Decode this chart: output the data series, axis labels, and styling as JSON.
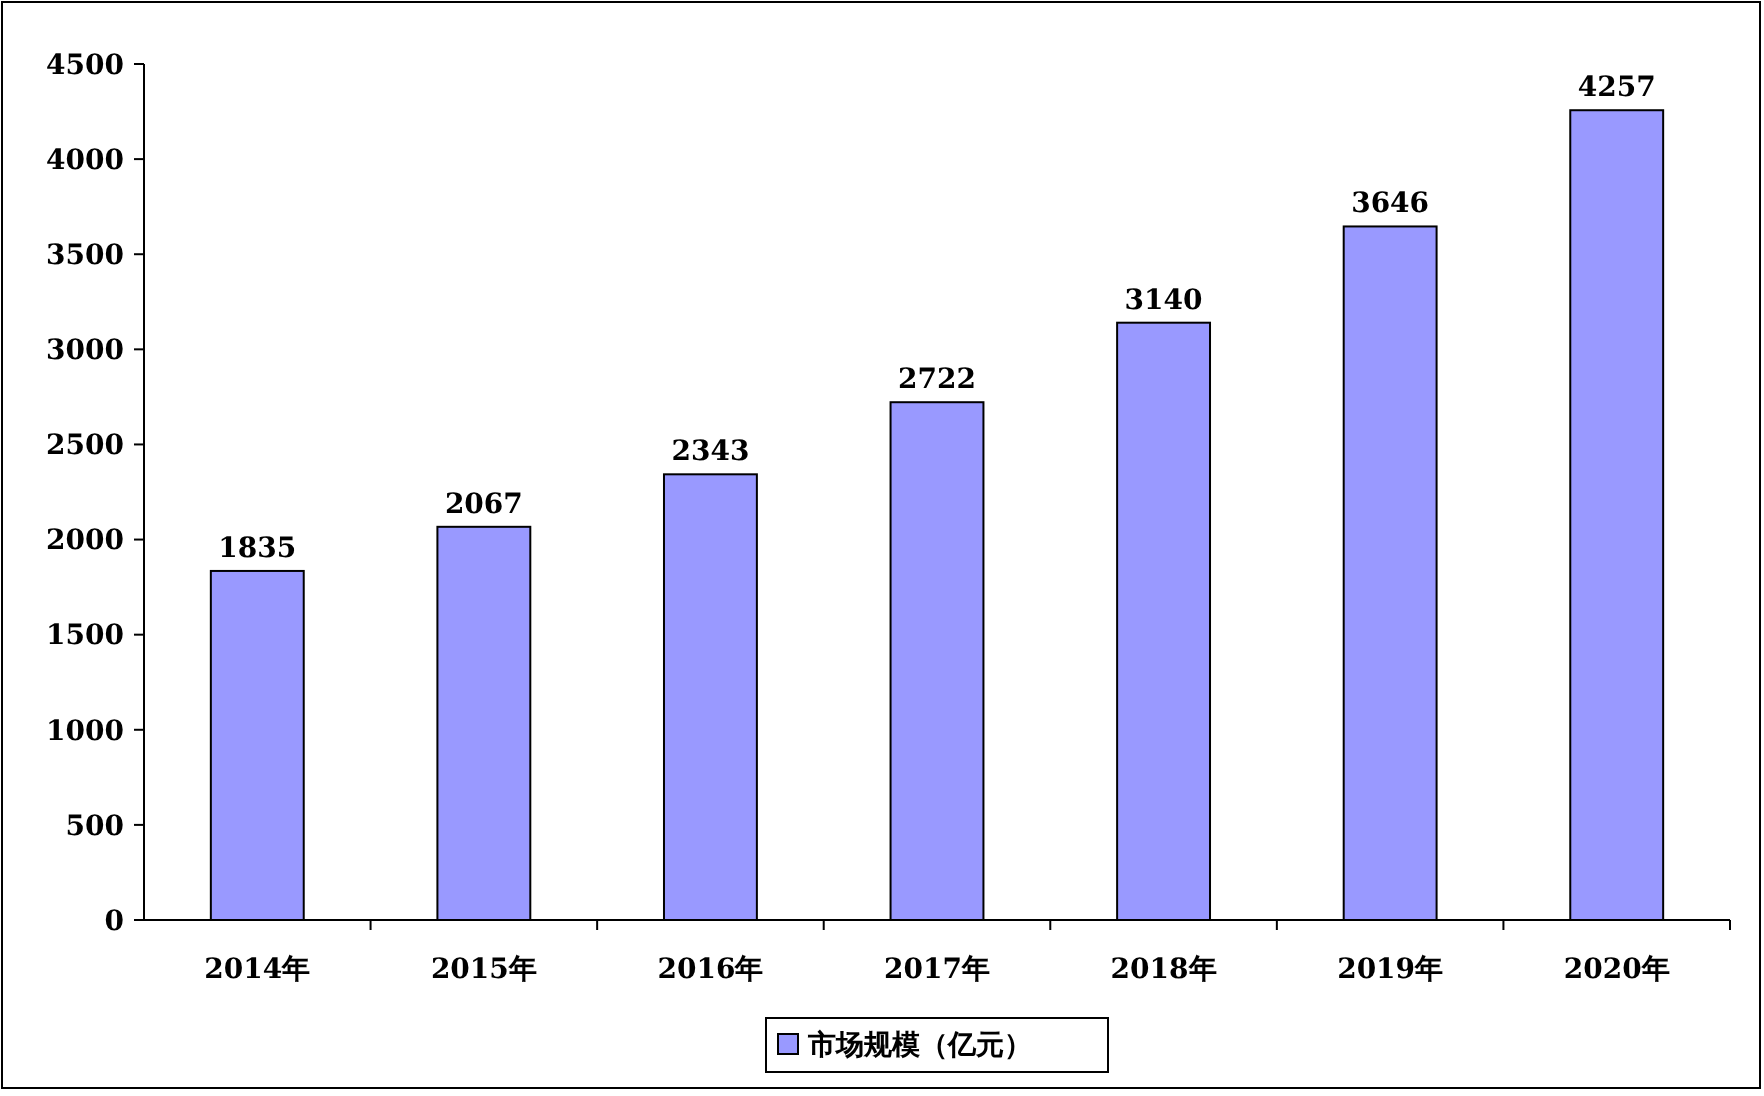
{
  "chart_data": {
    "type": "bar",
    "categories": [
      "2014年",
      "2015年",
      "2016年",
      "2017年",
      "2018年",
      "2019年",
      "2020年"
    ],
    "series": [
      {
        "name": "市场规模（亿元）",
        "color": "#9999ff",
        "values": [
          1835,
          2067,
          2343,
          2722,
          3140,
          3646,
          4257
        ]
      }
    ],
    "ylim": [
      0,
      4500
    ],
    "yticks": [
      0,
      500,
      1000,
      1500,
      2000,
      2500,
      3000,
      3500,
      4000,
      4500
    ],
    "grid": false,
    "legend": "bottom",
    "data_labels": true
  }
}
